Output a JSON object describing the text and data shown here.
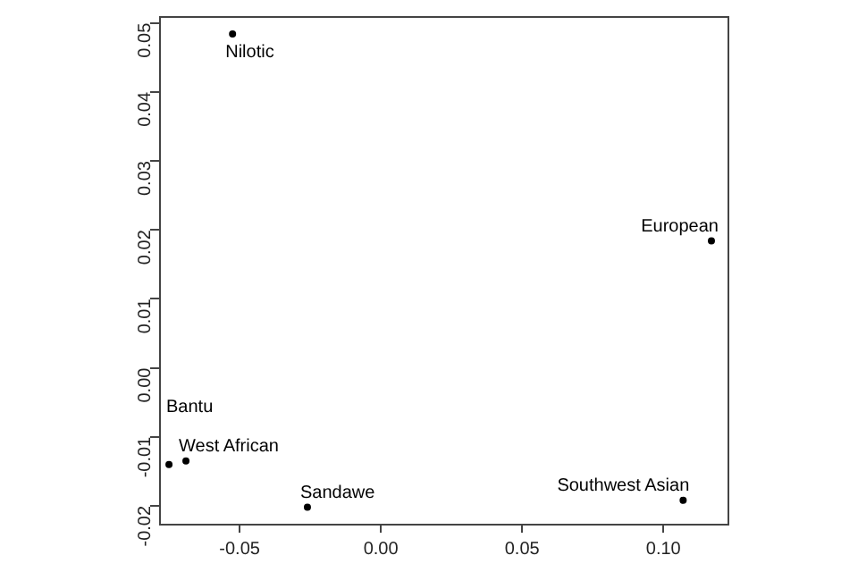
{
  "chart_data": {
    "type": "scatter",
    "marker": "circle",
    "grid": false,
    "series": [
      {
        "color": "#000000",
        "x": [
          -0.0525,
          0.117,
          0.107,
          -0.026,
          -0.069,
          -0.075
        ],
        "values": [
          0.0484,
          0.0184,
          -0.0192,
          -0.0202,
          -0.0135,
          -0.014
        ],
        "value_labels": [
          "Nilotic",
          "European",
          "Southwest Asian",
          "Sandawe",
          "West African",
          "Bantu"
        ]
      }
    ],
    "xlim": [
      -0.0785,
      0.1227
    ],
    "ylim": [
      -0.0226,
      0.051
    ],
    "xticks": [
      -0.05,
      {
        "value": 0,
        "label": "0.00"
      },
      0.05,
      {
        "value": 0.1,
        "label": "0.10"
      }
    ],
    "yticks": [
      -0.02,
      -0.01,
      {
        "value": 0,
        "label": "0.00"
      },
      0.01,
      0.02,
      0.03,
      0.04,
      0.05
    ]
  }
}
